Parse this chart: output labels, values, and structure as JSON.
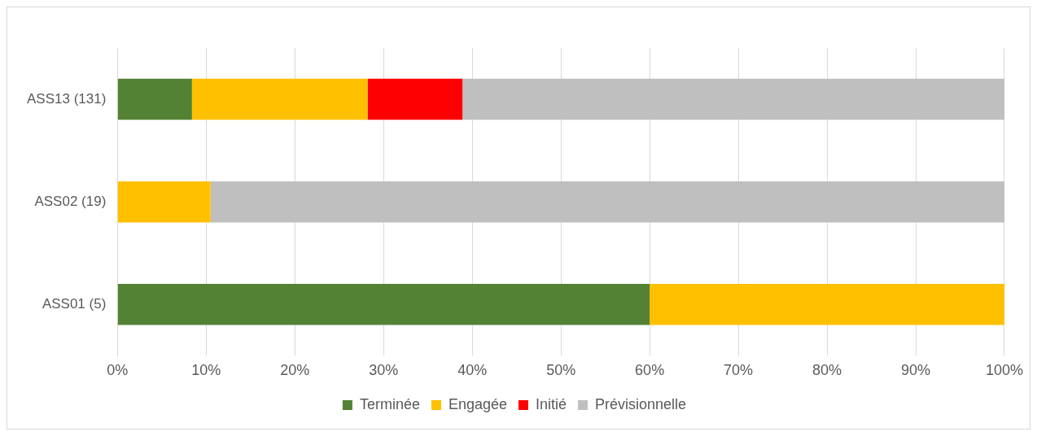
{
  "chart_data": {
    "type": "bar",
    "orientation": "horizontal",
    "stacked": true,
    "categories": [
      "ASS13 (131)",
      "ASS02 (19)",
      "ASS01 (5)"
    ],
    "series": [
      {
        "name": "Terminée",
        "color": "#548235",
        "values": [
          8.4,
          0,
          60
        ]
      },
      {
        "name": "Engagée",
        "color": "#ffc000",
        "values": [
          19.8,
          10.5,
          40
        ]
      },
      {
        "name": "Initié",
        "color": "#ff0000",
        "values": [
          10.7,
          0,
          0
        ]
      },
      {
        "name": "Prévisionnelle",
        "color": "#bfbfbf",
        "values": [
          61.1,
          89.5,
          0
        ]
      }
    ],
    "xlim": [
      0,
      100
    ],
    "xticks": [
      {
        "value": 0,
        "label": "0%"
      },
      {
        "value": 10,
        "label": "10%"
      },
      {
        "value": 20,
        "label": "20%"
      },
      {
        "value": 30,
        "label": "30%"
      },
      {
        "value": 40,
        "label": "40%"
      },
      {
        "value": 50,
        "label": "50%"
      },
      {
        "value": 60,
        "label": "60%"
      },
      {
        "value": 70,
        "label": "70%"
      },
      {
        "value": 80,
        "label": "80%"
      },
      {
        "value": 90,
        "label": "90%"
      },
      {
        "value": 100,
        "label": "100%"
      }
    ],
    "grid": "x",
    "legend": "bottom"
  }
}
